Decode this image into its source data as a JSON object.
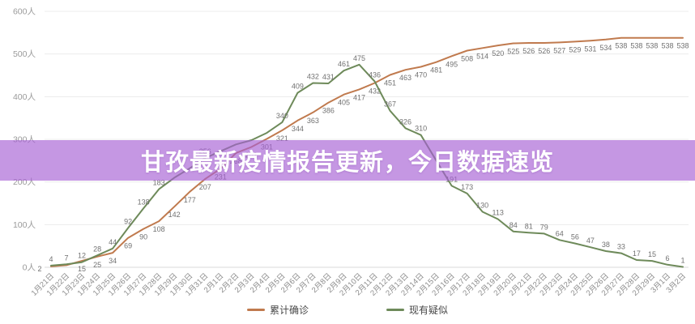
{
  "banner": {
    "title": "甘孜最新疫情报告更新，今日数据速览",
    "bg_color": "rgba(167,97,212,0.66)",
    "text_color": "#ffffff"
  },
  "chart_data": {
    "type": "line",
    "title": "",
    "xlabel": "",
    "ylabel": "",
    "y_unit_suffix": "人",
    "ylim": [
      0,
      600
    ],
    "yticks": [
      0,
      100,
      200,
      300,
      400,
      500,
      600
    ],
    "ytick_labels": [
      "0人",
      "100人",
      "200人",
      "300人",
      "400人",
      "500人",
      "600人"
    ],
    "grid": true,
    "legend_position": "bottom",
    "x": [
      "1月21日",
      "1月22日",
      "1月23日",
      "1月24日",
      "1月25日",
      "1月26日",
      "1月27日",
      "1月28日",
      "1月29日",
      "1月30日",
      "1月31日",
      "2月1日",
      "2月2日",
      "2月3日",
      "2月4日",
      "2月5日",
      "2月6日",
      "2月7日",
      "2月8日",
      "2月9日",
      "2月10日",
      "2月11日",
      "2月12日",
      "2月13日",
      "2月14日",
      "2月15日",
      "2月16日",
      "2月17日",
      "2月18日",
      "2月19日",
      "2月20日",
      "2月21日",
      "2月22日",
      "2月23日",
      "2月24日",
      "2月25日",
      "2月26日",
      "2月27日",
      "2月28日",
      "2月29日",
      "3月1日",
      "3月2日"
    ],
    "series": [
      {
        "name": "累计确诊",
        "color": "#c07a4e",
        "label_position": "below",
        "values": [
          2,
          5,
          15,
          25,
          34,
          69,
          90,
          108,
          142,
          177,
          207,
          231,
          268,
          282,
          301,
          321,
          344,
          363,
          386,
          405,
          417,
          432,
          451,
          463,
          470,
          481,
          495,
          508,
          514,
          520,
          525,
          526,
          526,
          527,
          529,
          531,
          534,
          538,
          538,
          538,
          538,
          538
        ],
        "hidden_label_indices": [
          1
        ]
      },
      {
        "name": "现有疑似",
        "color": "#6e8a5a",
        "label_position": "above",
        "values": [
          4,
          7,
          12,
          28,
          44,
          92,
          138,
          183,
          210,
          232,
          256,
          272,
          288,
          298,
          315,
          340,
          409,
          432,
          431,
          461,
          475,
          436,
          367,
          326,
          310,
          250,
          191,
          173,
          130,
          113,
          84,
          81,
          79,
          64,
          56,
          47,
          38,
          33,
          17,
          15,
          6,
          1
        ],
        "hidden_label_indices": [
          8,
          9,
          11,
          12,
          13,
          14,
          25
        ]
      }
    ]
  },
  "legend": {
    "items": [
      {
        "label": "累计确诊",
        "color": "#c07a4e"
      },
      {
        "label": "现有疑似",
        "color": "#6e8a5a"
      }
    ]
  }
}
